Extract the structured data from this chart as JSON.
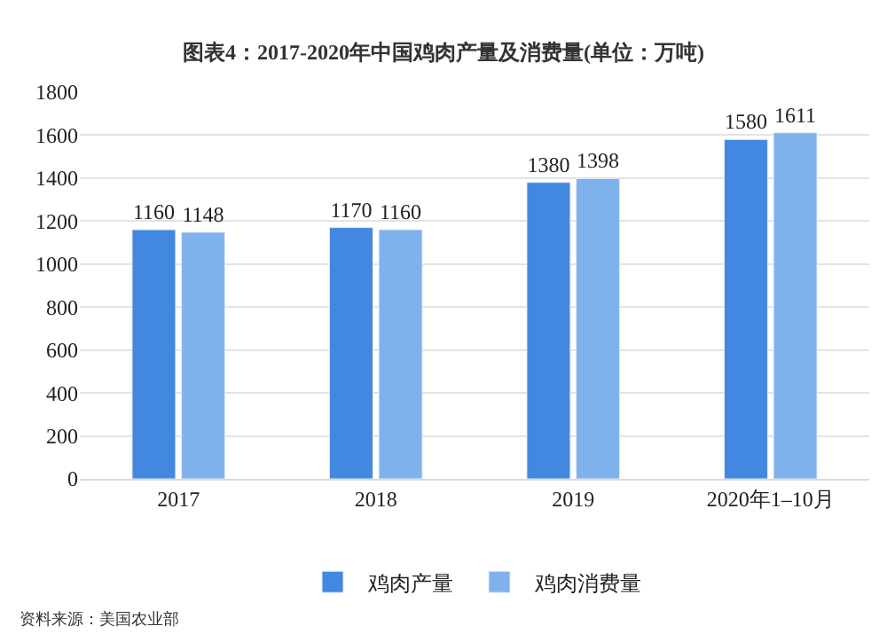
{
  "chart_data": {
    "type": "bar",
    "title": "图表4：2017-2020年中国鸡肉产量及消费量(单位：万吨)",
    "categories": [
      "2017",
      "2018",
      "2019",
      "2020年1–10月"
    ],
    "series": [
      {
        "name": "鸡肉产量",
        "color": "#4287e0",
        "values": [
          1160,
          1170,
          1380,
          1580
        ]
      },
      {
        "name": "鸡肉消费量",
        "color": "#7fb1ec",
        "values": [
          1148,
          1160,
          1398,
          1611
        ]
      }
    ],
    "ylim": [
      0,
      1800
    ],
    "yticks": [
      0,
      200,
      400,
      600,
      800,
      1000,
      1200,
      1400,
      1600,
      1800
    ],
    "grid": "y",
    "legend": "bottom",
    "data_labels": true,
    "annotations": [
      "资料来源：美国农业部"
    ]
  }
}
